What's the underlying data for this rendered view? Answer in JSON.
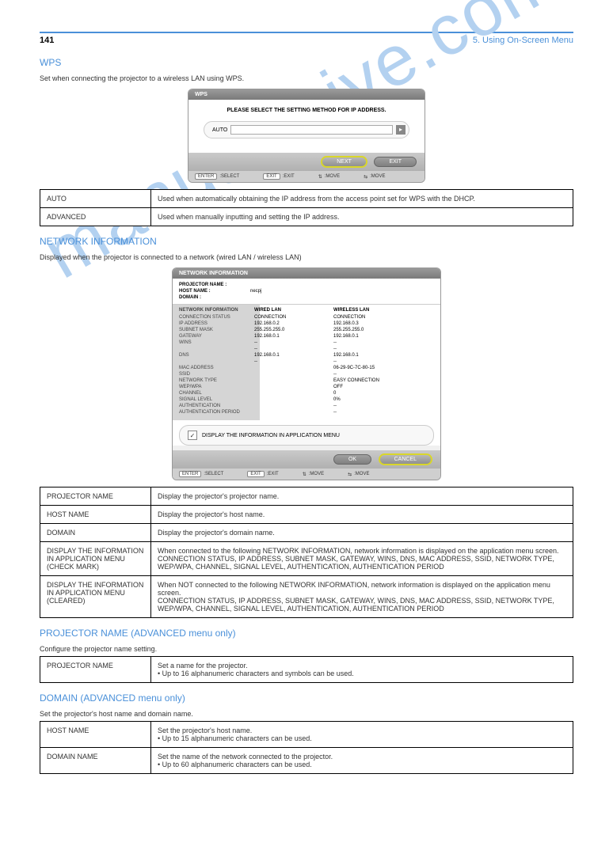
{
  "page_number": "141",
  "chapter": "5. Using On-Screen Menu",
  "watermark": "manualshive.com",
  "sec_wps": {
    "title": "WPS",
    "intro": "Set when connecting the projector to a wireless LAN using WPS.",
    "ss": {
      "header": "WPS",
      "msg": "PLEASE SELECT THE SETTING METHOD FOR IP ADDRESS.",
      "select_label": "AUTO",
      "btn_next": "NEXT",
      "btn_exit": "EXIT",
      "foot_select": ":SELECT",
      "foot_exit": ":EXIT",
      "foot_move1": ":MOVE",
      "foot_move2": ":MOVE"
    },
    "table": [
      {
        "label": "AUTO",
        "desc": "Used when automatically obtaining the IP address from the access point set for WPS with the DHCP."
      },
      {
        "label": "ADVANCED",
        "desc": "Used when manually inputting and setting the IP address."
      }
    ]
  },
  "sec_netinfo": {
    "title": "NETWORK INFORMATION",
    "intro": "Displayed when the projector is connected to a network (wired LAN / wireless LAN)",
    "ss": {
      "header": "NETWORK INFORMATION",
      "projector_name_label": "PROJECTOR NAME :",
      "projector_name": "",
      "host_name_label": "HOST NAME :",
      "host_name": "necpj",
      "domain_label": "DOMAIN :",
      "domain": "",
      "col_info": "NETWORK INFORMATION",
      "col_wired": "WIRED LAN",
      "col_wireless": "WIRELESS LAN",
      "rows": [
        {
          "k": "CONNECTION STATUS",
          "a": "CONNECTION",
          "b": "CONNECTION"
        },
        {
          "k": "IP ADDRESS",
          "a": "192.168.0.2",
          "b": "192.168.0.3"
        },
        {
          "k": "SUBNET MASK",
          "a": "255.255.255.0",
          "b": "255.255.255.0"
        },
        {
          "k": "GATEWAY",
          "a": "192.168.0.1",
          "b": "192.168.0.1"
        },
        {
          "k": "WINS",
          "a": "--",
          "b": "--"
        },
        {
          "k": "",
          "a": "--",
          "b": "--"
        },
        {
          "k": "DNS",
          "a": "192.168.0.1",
          "b": "192.168.0.1"
        },
        {
          "k": "",
          "a": "--",
          "b": "--"
        },
        {
          "k": "MAC ADDRESS",
          "a": "",
          "b": "06-29-9C-7C-80-15"
        },
        {
          "k": "SSID",
          "a": "",
          "b": "--"
        },
        {
          "k": "NETWORK TYPE",
          "a": "",
          "b": "EASY CONNECTION"
        },
        {
          "k": "WEP/WPA",
          "a": "",
          "b": "OFF"
        },
        {
          "k": "CHANNEL",
          "a": "",
          "b": "0"
        },
        {
          "k": "SIGNAL LEVEL",
          "a": "",
          "b": "0%"
        },
        {
          "k": "AUTHENTICATION",
          "a": "",
          "b": "--"
        },
        {
          "k": "AUTHENTICATION PERIOD",
          "a": "",
          "b": "--"
        }
      ],
      "checkbox_label": "DISPLAY THE INFORMATION IN APPLICATION MENU",
      "btn_ok": "OK",
      "btn_cancel": "CANCEL",
      "foot_select": ":SELECT",
      "foot_exit": ":EXIT",
      "foot_move1": ":MOVE",
      "foot_move2": ":MOVE"
    },
    "table": [
      {
        "label": "PROJECTOR NAME",
        "desc": "Display the projector's projector name."
      },
      {
        "label": "HOST NAME",
        "desc": "Display the projector's host name."
      },
      {
        "label": "DOMAIN",
        "desc": "Display the projector's domain name."
      },
      {
        "label": "DISPLAY THE INFORMATION IN APPLICATION MENU (CHECK MARK)",
        "desc": "When connected to the following NETWORK INFORMATION, network information is displayed on the application menu screen.\nCONNECTION STATUS, IP ADDRESS, SUBNET MASK, GATEWAY, WINS, DNS, MAC ADDRESS, SSID, NETWORK TYPE, WEP/WPA, CHANNEL, SIGNAL LEVEL, AUTHENTICATION, AUTHENTICATION PERIOD"
      },
      {
        "label": "DISPLAY THE INFORMATION IN APPLICATION MENU (CLEARED)",
        "desc": "When NOT connected to the following NETWORK INFORMATION, network information is displayed on the application menu screen.\nCONNECTION STATUS, IP ADDRESS, SUBNET MASK, GATEWAY, WINS, DNS, MAC ADDRESS, SSID, NETWORK TYPE, WEP/WPA, CHANNEL, SIGNAL LEVEL, AUTHENTICATION, AUTHENTICATION PERIOD"
      }
    ]
  },
  "sec_projname": {
    "title": "PROJECTOR NAME (ADVANCED menu only)",
    "intro": "Configure the projector name setting.",
    "table": [
      {
        "label": "PROJECTOR NAME",
        "desc": "Set a name for the projector.\n• Up to 16 alphanumeric characters and symbols can be used."
      }
    ]
  },
  "sec_domain": {
    "title": "DOMAIN (ADVANCED menu only)",
    "intro": "Set the projector's host name and domain name.",
    "table": [
      {
        "label": "HOST NAME",
        "desc": "Set the projector's host name.\n• Up to 15 alphanumeric characters can be used."
      },
      {
        "label": "DOMAIN NAME",
        "desc": "Set the name of the network connected to the projector.\n• Up to 60 alphanumeric characters can be used."
      }
    ]
  }
}
